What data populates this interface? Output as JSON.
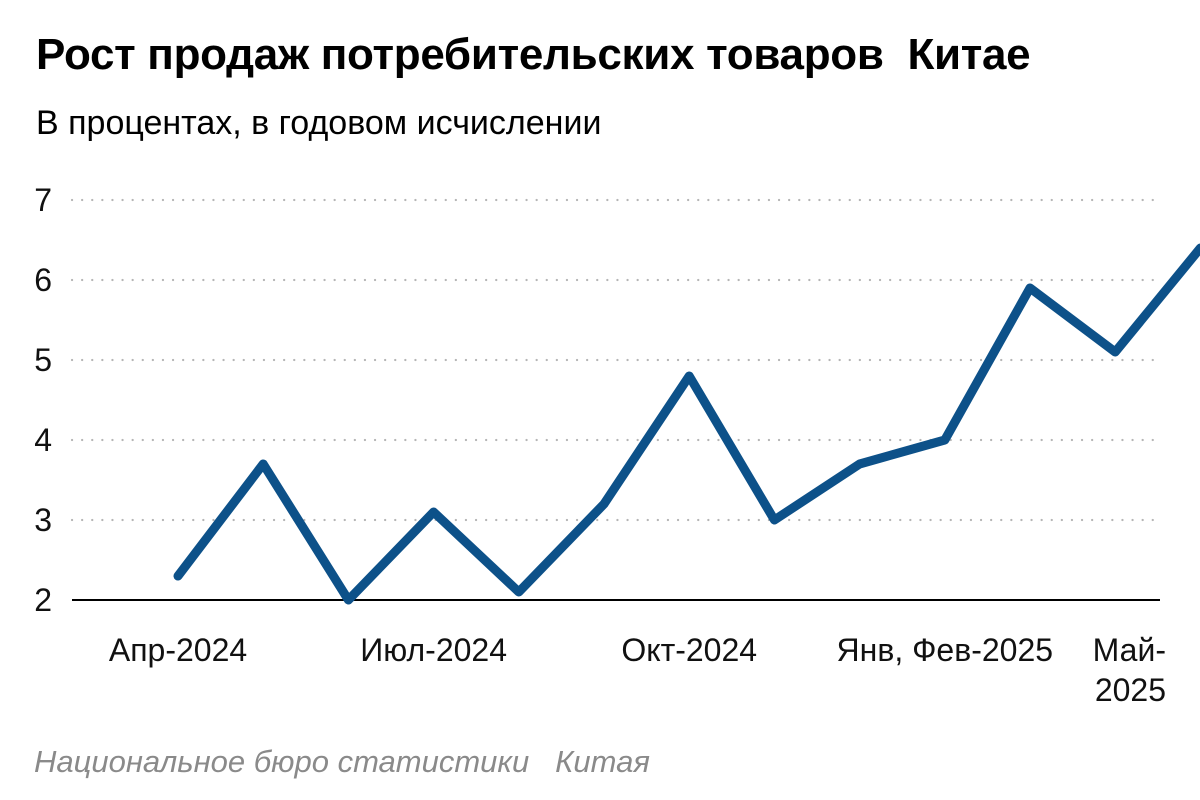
{
  "title": "Рост продаж потребительских товаров  Китае",
  "subtitle": "В процентах, в годовом исчислении",
  "source": "Национальное бюро статистики   Китая",
  "colors": {
    "line": "#0d5189",
    "grid": "#b5b5b5",
    "axis": "#000000"
  },
  "chart_data": {
    "type": "line",
    "title": "Рост продаж потребительских товаров  Китае",
    "subtitle": "В процентах, в годовом исчислении",
    "ylim": [
      2,
      7
    ],
    "yticks": [
      2,
      3,
      4,
      5,
      6,
      7
    ],
    "grid": "horizontal dotted",
    "x_tick_labels": [
      {
        "index": 0,
        "lines": [
          "Апр-2024"
        ]
      },
      {
        "index": 3,
        "lines": [
          "Июл-2024"
        ]
      },
      {
        "index": 6,
        "lines": [
          "Окт-2024"
        ]
      },
      {
        "index": 9,
        "lines": [
          "Янв, Фев-2025"
        ]
      },
      {
        "index": 12,
        "lines": [
          "Май-",
          "2025"
        ]
      }
    ],
    "series": [
      {
        "values": [
          2.3,
          3.7,
          2.0,
          3.1,
          2.1,
          3.2,
          4.8,
          3.0,
          3.7,
          4.0,
          5.9,
          5.1,
          6.4
        ]
      }
    ]
  }
}
